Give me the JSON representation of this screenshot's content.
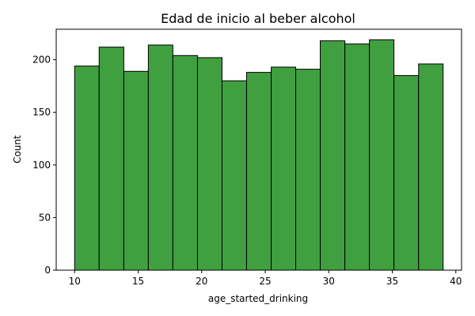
{
  "chart_data": {
    "type": "bar",
    "title": "Edad de inicio al beber alcohol",
    "xlabel": "age_started_drinking",
    "ylabel": "Count",
    "bin_edges": [
      10,
      11.93,
      13.87,
      15.8,
      17.73,
      19.67,
      21.6,
      23.53,
      25.47,
      27.4,
      29.33,
      31.27,
      33.2,
      35.13,
      37.07,
      39
    ],
    "values": [
      194,
      212,
      189,
      214,
      204,
      202,
      180,
      188,
      193,
      191,
      218,
      215,
      219,
      185,
      196
    ],
    "xlim": [
      8.55,
      40.45
    ],
    "ylim": [
      0,
      229
    ],
    "x_ticks": [
      10,
      15,
      20,
      25,
      30,
      35,
      40
    ],
    "y_ticks": [
      0,
      50,
      100,
      150,
      200
    ],
    "bar_color": "#40a040",
    "bar_edge_color": "#000000",
    "grid": false
  }
}
